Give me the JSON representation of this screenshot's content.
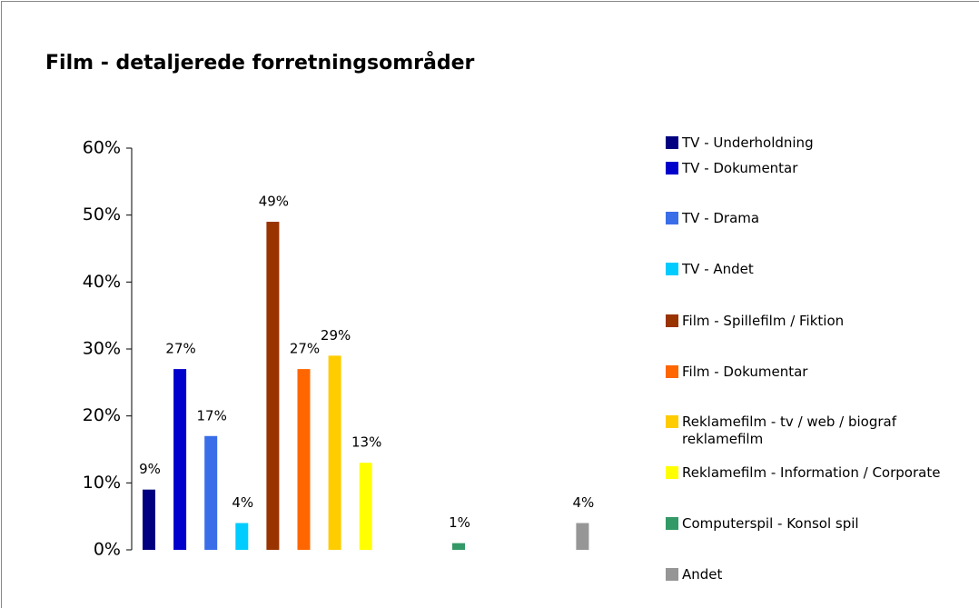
{
  "chart_data": {
    "type": "bar",
    "title": "Film - detaljerede forretningsområder",
    "categories": [
      "TV - Underholdning",
      "TV - Dokumentar",
      "TV - Drama",
      "TV - Andet",
      "Film - Spillefilm / Fiktion",
      "Film - Dokumentar",
      "Reklamefilm - tv / web / biograf reklamefilm",
      "Reklamefilm - Information / Corporate",
      null,
      null,
      "Computerspil - Konsol spil",
      null,
      null,
      null,
      "Andet"
    ],
    "values": [
      9,
      27,
      17,
      4,
      49,
      27,
      29,
      13,
      null,
      null,
      1,
      null,
      null,
      null,
      4
    ],
    "value_labels": [
      "9%",
      "27%",
      "17%",
      "4%",
      "49%",
      "27%",
      "29%",
      "13%",
      null,
      null,
      "1%",
      null,
      null,
      null,
      "4%"
    ],
    "colors": [
      "#000080",
      "#0000cc",
      "#3a6ee8",
      "#00ccff",
      "#993300",
      "#ff6600",
      "#ffcc00",
      "#ffff00",
      null,
      null,
      "#339966",
      null,
      null,
      null,
      "#969696"
    ],
    "ylim": [
      0,
      60
    ],
    "yticks": [
      {
        "value": 0,
        "label": "0%"
      },
      {
        "value": 10,
        "label": "10%"
      },
      {
        "value": 20,
        "label": "20%"
      },
      {
        "value": 30,
        "label": "30%"
      },
      {
        "value": 40,
        "label": "40%"
      },
      {
        "value": 50,
        "label": "50%"
      },
      {
        "value": 60,
        "label": "60%"
      }
    ],
    "legend": "right"
  }
}
